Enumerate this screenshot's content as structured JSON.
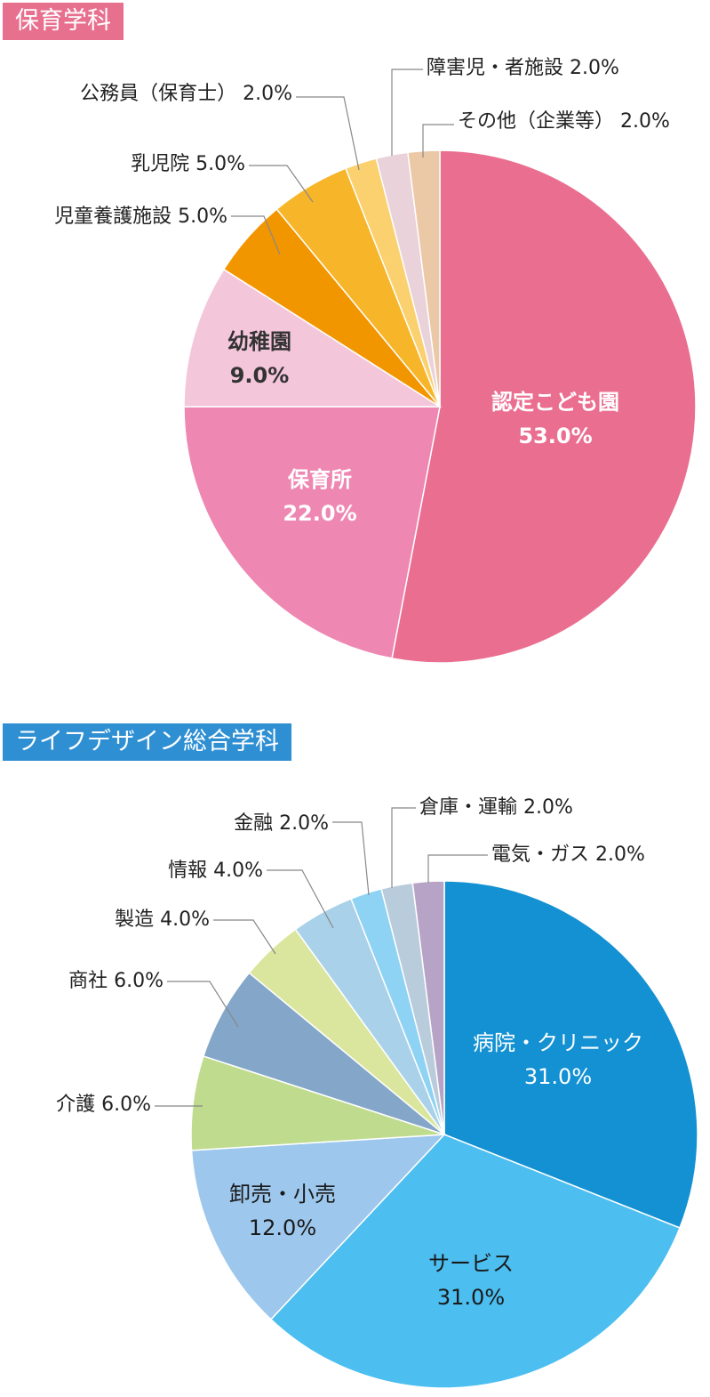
{
  "chart_data": [
    {
      "type": "pie",
      "title": "保育学科",
      "title_color": "#E8708F",
      "labels": [
        "認定こども園",
        "保育所",
        "幼稚園",
        "児童養護施設",
        "乳児院",
        "公務員（保育士）",
        "障害児・者施設",
        "その他（企業等）"
      ],
      "values": [
        53.0,
        22.0,
        9.0,
        5.0,
        5.0,
        2.0,
        2.0,
        2.0
      ],
      "value_labels": [
        "53.0%",
        "22.0%",
        "9.0%",
        "5.0%",
        "5.0%",
        "2.0%",
        "2.0%",
        "2.0%"
      ],
      "colors": [
        "#EA6E8F",
        "#EE88B3",
        "#F4C6DA",
        "#F29600",
        "#F7B52A",
        "#FBD06E",
        "#E9D2DA",
        "#EBC8A6"
      ]
    },
    {
      "type": "pie",
      "title": "ライフデザイン総合学科",
      "title_color": "#2F8FD3",
      "labels": [
        "病院・クリニック",
        "サービス",
        "卸売・小売",
        "介護",
        "商社",
        "製造",
        "情報",
        "金融",
        "倉庫・運輸",
        "電気・ガス"
      ],
      "values": [
        31.0,
        31.0,
        12.0,
        6.0,
        6.0,
        4.0,
        4.0,
        2.0,
        2.0,
        2.0
      ],
      "value_labels": [
        "31.0%",
        "31.0%",
        "12.0%",
        "6.0%",
        "6.0%",
        "4.0%",
        "4.0%",
        "2.0%",
        "2.0%",
        "2.0%"
      ],
      "colors": [
        "#1391D3",
        "#4CBEF0",
        "#9DC7EC",
        "#BFDB8E",
        "#84A6C8",
        "#DAE69E",
        "#A9D1E9",
        "#8FD3F4",
        "#B9CCDB",
        "#B7A3C6"
      ]
    }
  ]
}
